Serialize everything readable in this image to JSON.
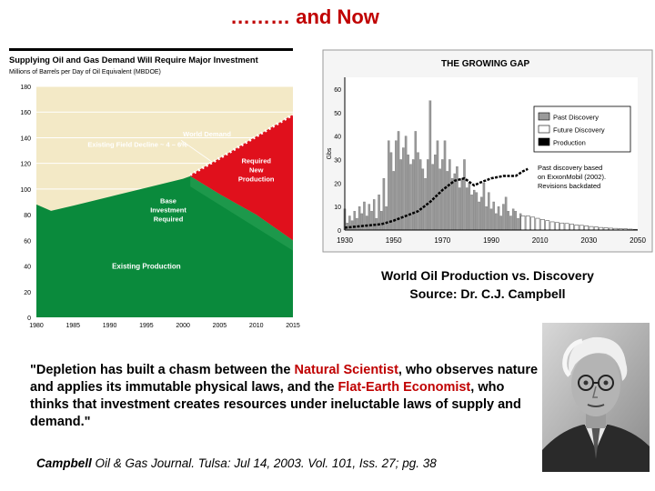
{
  "slide": {
    "title": "……… and Now"
  },
  "caption": {
    "line1": "World Oil Production vs. Discovery",
    "line2": "Source: Dr. C.J. Campbell"
  },
  "quote": {
    "open": "\"Depletion has built a chasm between the ",
    "term1": "Natural Scientist",
    "middle": ", who observes nature and applies its immutable physical laws, and the ",
    "term2": "Flat-Earth Economist",
    "close": ", who thinks that investment creates resources under ineluctable laws of supply and demand.\""
  },
  "citation": {
    "author": "Campbell",
    "rest": " Oil & Gas Journal. Tulsa: Jul 14, 2003. Vol. 101, Iss. 27; pg. 38"
  },
  "photo": {
    "icon": "portrait-photo-icon"
  },
  "chart_data": [
    {
      "type": "area",
      "title": "Supplying Oil and Gas Demand Will Require Major Investment",
      "ylabel": "Millions of Barrels per Day of Oil Equivalent (MBDOE)",
      "ylim": [
        0,
        180
      ],
      "yticks": [
        "0",
        "20",
        "40",
        "60",
        "80",
        "100",
        "120",
        "140",
        "160",
        "180"
      ],
      "xticks": [
        "1980",
        "1985",
        "1990",
        "1995",
        "2000",
        "2005",
        "2010",
        "2015"
      ],
      "x": [
        1980,
        1982,
        1985,
        1990,
        1995,
        2000,
        2001,
        2005,
        2010,
        2015
      ],
      "series": [
        {
          "name": "Existing Production",
          "values": [
            88,
            83,
            87,
            94,
            101,
            108,
            110,
            96,
            80,
            60
          ]
        },
        {
          "name": "World Demand",
          "values": [
            88,
            83,
            87,
            94,
            101,
            108,
            111,
            124,
            141,
            158
          ]
        }
      ],
      "annotations": {
        "world_demand": "World Demand",
        "decline": "Existing Field Decline ~ 4 – 6%",
        "required_new": [
          "Required",
          "New",
          "Production"
        ],
        "base_investment": [
          "Base",
          "Investment",
          "Required"
        ],
        "existing_production": "Existing Production"
      },
      "colors": {
        "existing": "#0a8a3c",
        "required": "#e0101c",
        "background": "#f3e9c6",
        "header": "#000000"
      }
    },
    {
      "type": "bar",
      "title": "THE GROWING GAP",
      "ylabel": "Gbs",
      "ylim": [
        0,
        65
      ],
      "yticks": [
        "0",
        "10",
        "20",
        "30",
        "40",
        "50",
        "60"
      ],
      "xticks": [
        "1930",
        "1950",
        "1970",
        "1990",
        "2010",
        "2030",
        "2050"
      ],
      "legend": [
        "Past Discovery",
        "Future Discovery",
        "Production"
      ],
      "legend_position": "top-right",
      "note": [
        "Past discovery based",
        "on ExxonMobil (2002).",
        "Revisions backdated"
      ],
      "past_discovery": {
        "years": [
          1930,
          1931,
          1932,
          1933,
          1934,
          1935,
          1936,
          1937,
          1938,
          1939,
          1940,
          1941,
          1942,
          1943,
          1944,
          1945,
          1946,
          1947,
          1948,
          1949,
          1950,
          1951,
          1952,
          1953,
          1954,
          1955,
          1956,
          1957,
          1958,
          1959,
          1960,
          1961,
          1962,
          1963,
          1964,
          1965,
          1966,
          1967,
          1968,
          1969,
          1970,
          1971,
          1972,
          1973,
          1974,
          1975,
          1976,
          1977,
          1978,
          1979,
          1980,
          1981,
          1982,
          1983,
          1984,
          1985,
          1986,
          1987,
          1988,
          1989,
          1990,
          1991,
          1992,
          1993,
          1994,
          1995,
          1996,
          1997,
          1998,
          1999,
          2000,
          2001,
          2002
        ],
        "values": [
          9,
          3,
          6,
          4,
          8,
          5,
          10,
          7,
          12,
          6,
          11,
          8,
          13,
          5,
          15,
          8,
          22,
          10,
          38,
          33,
          25,
          38,
          42,
          30,
          35,
          40,
          32,
          28,
          30,
          42,
          33,
          30,
          26,
          22,
          30,
          55,
          28,
          32,
          38,
          26,
          30,
          38,
          25,
          30,
          22,
          24,
          27,
          18,
          22,
          30,
          18,
          20,
          15,
          17,
          16,
          12,
          14,
          20,
          10,
          16,
          9,
          12,
          7,
          10,
          6,
          11,
          14,
          8,
          6,
          9,
          8,
          5,
          7
        ]
      },
      "future_discovery": {
        "years": [
          2003,
          2005,
          2007,
          2009,
          2011,
          2013,
          2015,
          2017,
          2019,
          2021,
          2023,
          2025,
          2027,
          2029,
          2031,
          2033,
          2035,
          2037,
          2039,
          2041,
          2043,
          2045,
          2047,
          2049
        ],
        "values": [
          6,
          6,
          5.5,
          5,
          4.5,
          4,
          3.5,
          3.2,
          3,
          2.8,
          2.5,
          2.2,
          2,
          1.8,
          1.5,
          1.3,
          1.1,
          1,
          0.8,
          0.7,
          0.6,
          0.5,
          0.4,
          0.3
        ]
      },
      "production": {
        "years": [
          1930,
          1935,
          1940,
          1945,
          1950,
          1955,
          1960,
          1965,
          1970,
          1975,
          1979,
          1983,
          1985,
          1990,
          1995,
          2000,
          2003,
          2005
        ],
        "values": [
          1,
          1.5,
          2,
          2.5,
          4,
          6,
          8,
          12,
          17,
          21,
          22,
          19,
          20,
          22,
          23,
          23,
          25,
          26
        ]
      },
      "colors": {
        "past": "#9a9a9a",
        "future": "#ffffff",
        "production": "#000000"
      }
    }
  ]
}
